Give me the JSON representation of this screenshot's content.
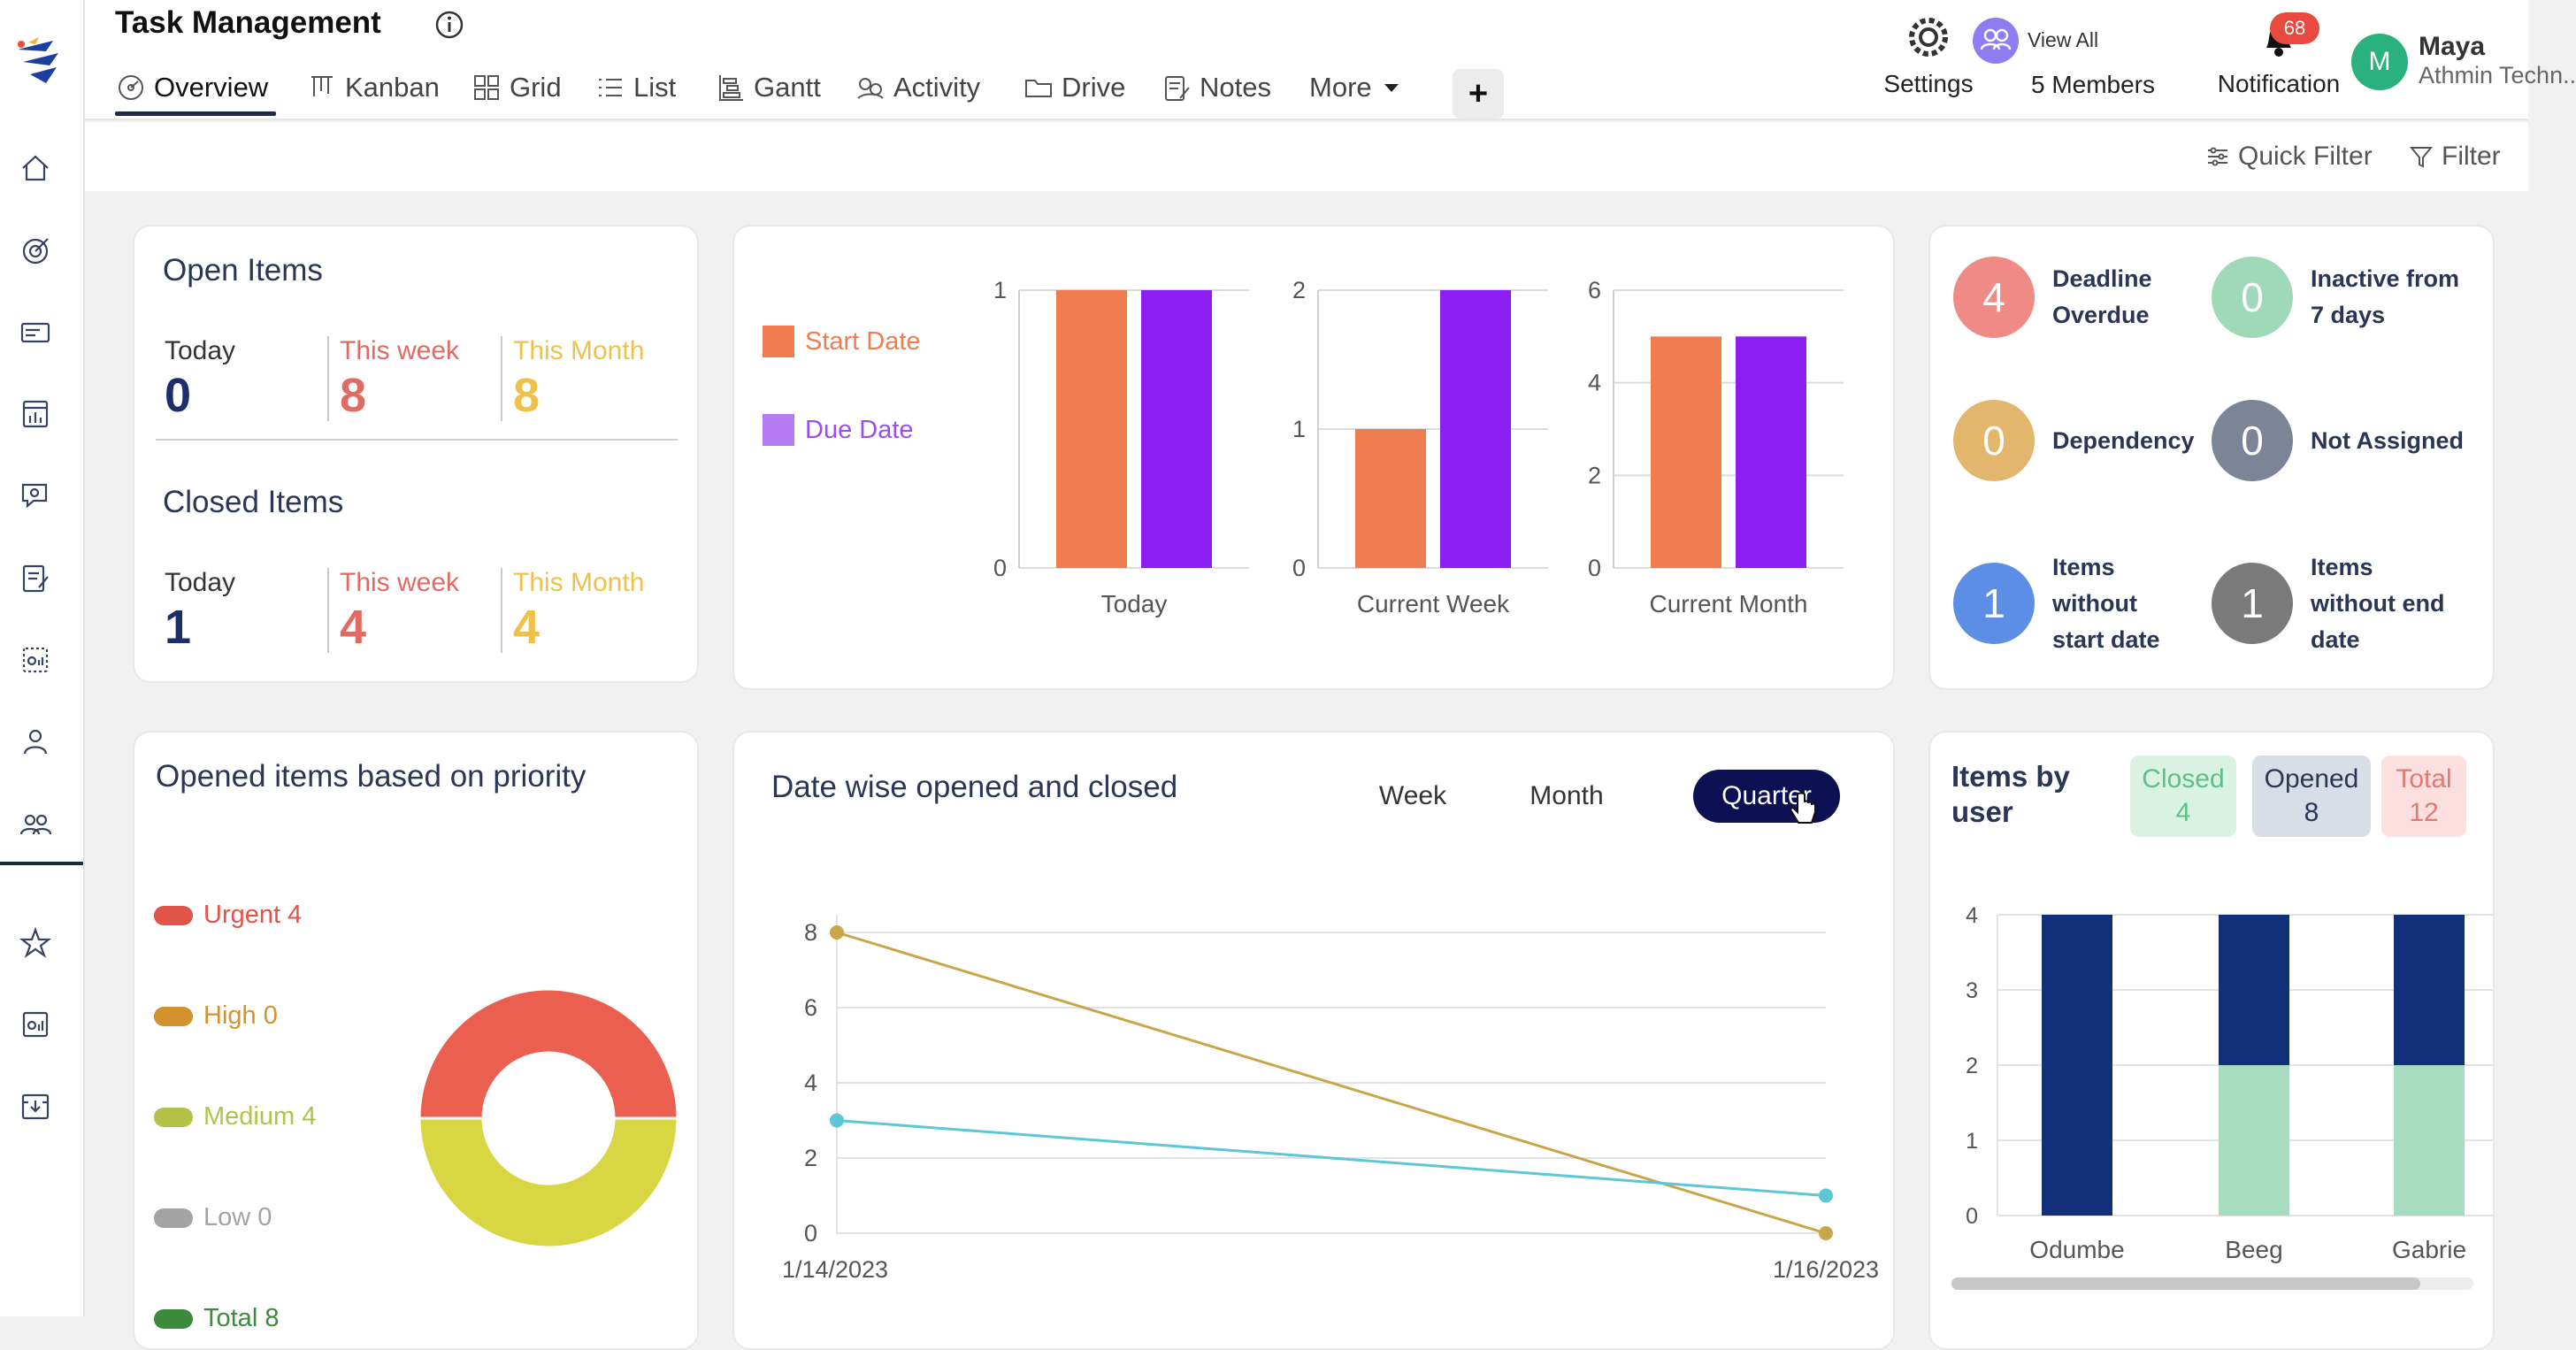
{
  "app": {
    "title": "Task Management"
  },
  "tabs": [
    {
      "label": "Overview",
      "icon": "overview-icon"
    },
    {
      "label": "Kanban",
      "icon": "kanban-icon"
    },
    {
      "label": "Grid",
      "icon": "grid-icon"
    },
    {
      "label": "List",
      "icon": "list-icon"
    },
    {
      "label": "Gantt",
      "icon": "gantt-icon"
    },
    {
      "label": "Activity",
      "icon": "activity-icon"
    },
    {
      "label": "Drive",
      "icon": "folder-icon"
    },
    {
      "label": "Notes",
      "icon": "notes-icon"
    },
    {
      "label": "More",
      "icon": "chevron-down-icon"
    }
  ],
  "add_tab": "+",
  "header": {
    "settings": "Settings",
    "view_all": "View All",
    "members": "5 Members",
    "notification": "Notification",
    "notification_count": "68",
    "avatar_initial": "M",
    "user_name": "Maya",
    "user_org": "Athmin Techn.."
  },
  "filters": {
    "quick_filter": "Quick Filter",
    "filter": "Filter"
  },
  "open_items": {
    "title": "Open Items",
    "labels": [
      "Today",
      "This week",
      "This Month"
    ],
    "values": [
      "0",
      "8",
      "8"
    ]
  },
  "closed_items": {
    "title": "Closed Items",
    "labels": [
      "Today",
      "This week",
      "This Month"
    ],
    "values": [
      "1",
      "4",
      "4"
    ]
  },
  "status_summary": [
    {
      "value": "4",
      "lines": [
        "Deadline",
        "Overdue"
      ],
      "color": "#ef8a85"
    },
    {
      "value": "0",
      "lines": [
        "Inactive from",
        "7 days"
      ],
      "color": "#9fd9b8"
    },
    {
      "value": "0",
      "lines": [
        "Dependency"
      ],
      "color": "#e2b66c"
    },
    {
      "value": "0",
      "lines": [
        "Not Assigned"
      ],
      "color": "#7c8597"
    },
    {
      "value": "1",
      "lines": [
        "Items",
        "without",
        "start date"
      ],
      "color": "#5d8ee6"
    },
    {
      "value": "1",
      "lines": [
        "Items",
        "without end",
        "date"
      ],
      "color": "#7a7a7a"
    }
  ],
  "priority": {
    "title": "Opened items based on priority",
    "legend": [
      {
        "label": "Urgent 4",
        "color": "#e2544a"
      },
      {
        "label": "High 0",
        "color": "#d4922c"
      },
      {
        "label": "Medium 4",
        "color": "#b5c24a"
      },
      {
        "label": "Low 0",
        "color": "#a3a3a3"
      },
      {
        "label": "Total 8",
        "color": "#3c8a3c"
      }
    ]
  },
  "datewise": {
    "title": "Date wise opened and closed",
    "ranges": [
      "Week",
      "Month",
      "Quarter"
    ],
    "active_range": "Quarter"
  },
  "byuser": {
    "title_lines": [
      "Items by",
      "user"
    ],
    "pills": [
      {
        "label": "Closed",
        "value": "4",
        "bg": "#d9f2e3",
        "fg": "#5fbf8a"
      },
      {
        "label": "Opened",
        "value": "8",
        "bg": "#d9dde5",
        "fg": "#2b3655"
      },
      {
        "label": "Total",
        "value": "12",
        "bg": "#fbe0df",
        "fg": "#e07a72"
      }
    ]
  },
  "chart_data": [
    {
      "type": "bar",
      "title": "",
      "legend": [
        {
          "name": "Start Date",
          "color": "#ef7d4f"
        },
        {
          "name": "Due Date",
          "color": "#8b1ef0"
        }
      ],
      "panels": [
        {
          "category": "Today",
          "ylim": [
            0,
            1
          ],
          "yticks": [
            0,
            1
          ],
          "series": [
            {
              "name": "Start Date",
              "value": 1
            },
            {
              "name": "Due Date",
              "value": 1
            }
          ]
        },
        {
          "category": "Current Week",
          "ylim": [
            0,
            2
          ],
          "yticks": [
            0,
            1,
            2
          ],
          "series": [
            {
              "name": "Start Date",
              "value": 1
            },
            {
              "name": "Due Date",
              "value": 2
            }
          ]
        },
        {
          "category": "Current Month",
          "ylim": [
            0,
            6
          ],
          "yticks": [
            0,
            2,
            4,
            6
          ],
          "series": [
            {
              "name": "Start Date",
              "value": 5
            },
            {
              "name": "Due Date",
              "value": 5
            }
          ]
        }
      ]
    },
    {
      "type": "pie",
      "title": "Opened items based on priority",
      "donut": true,
      "slices": [
        {
          "label": "Urgent",
          "value": 4,
          "color": "#ea5f50"
        },
        {
          "label": "Medium",
          "value": 4,
          "color": "#d8d743"
        }
      ]
    },
    {
      "type": "line",
      "title": "Date wise opened and closed",
      "x": [
        "1/14/2023",
        "1/16/2023"
      ],
      "ylim": [
        0,
        8
      ],
      "yticks": [
        0,
        2,
        4,
        6,
        8
      ],
      "series": [
        {
          "color": "#c9a64a",
          "values": [
            8,
            0
          ]
        },
        {
          "color": "#5ec7d6",
          "values": [
            3,
            1
          ]
        }
      ]
    },
    {
      "type": "bar",
      "stacked": true,
      "title": "Items by user",
      "categories": [
        "Odumbe",
        "Beeg",
        "Gabrie"
      ],
      "ylim": [
        0,
        4
      ],
      "yticks": [
        0,
        1,
        2,
        3,
        4
      ],
      "series": [
        {
          "color": "#a8dcc1",
          "values": [
            0,
            2,
            2
          ]
        },
        {
          "color": "#12307a",
          "values": [
            4,
            2,
            2
          ]
        }
      ]
    }
  ]
}
